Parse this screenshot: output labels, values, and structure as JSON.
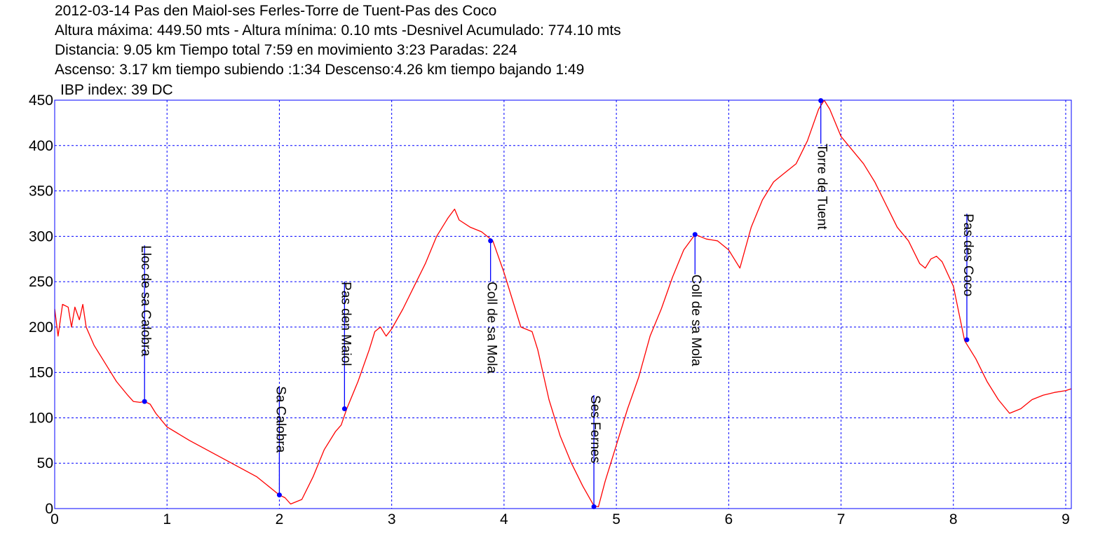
{
  "header": {
    "line1": "2012-03-14 Pas den Maiol-ses Ferles-Torre de Tuent-Pas des Coco",
    "line2": "Altura máxima: 449.50 mts - Altura mínima: 0.10 mts -Desnivel Acumulado: 774.10 mts",
    "line3": "Distancia: 9.05 km  Tiempo total 7:59  en movimiento 3:23 Paradas: 224",
    "line4": "Ascenso: 3.17 km  tiempo subiendo :1:34  Descenso:4.26 km tiempo bajando 1:49",
    "line5": "IBP index: 39 DC"
  },
  "colors": {
    "frame": "#0000ff",
    "grid": "#0000ff",
    "profile": "#ff0000",
    "waypoint": "#0000ff"
  },
  "chart_data": {
    "type": "line",
    "xlim": [
      0,
      9.05
    ],
    "ylim": [
      0,
      450
    ],
    "xticks": [
      0,
      1,
      2,
      3,
      4,
      5,
      6,
      7,
      8,
      9
    ],
    "yticks": [
      0,
      50,
      100,
      150,
      200,
      250,
      300,
      350,
      400,
      450
    ],
    "grid": true,
    "series": [
      {
        "points": [
          [
            0.0,
            220
          ],
          [
            0.03,
            190
          ],
          [
            0.07,
            225
          ],
          [
            0.12,
            222
          ],
          [
            0.15,
            200
          ],
          [
            0.18,
            222
          ],
          [
            0.22,
            208
          ],
          [
            0.25,
            225
          ],
          [
            0.28,
            200
          ],
          [
            0.35,
            180
          ],
          [
            0.45,
            160
          ],
          [
            0.55,
            140
          ],
          [
            0.65,
            125
          ],
          [
            0.7,
            118
          ],
          [
            0.76,
            117
          ],
          [
            0.8,
            118
          ],
          [
            0.85,
            115
          ],
          [
            0.9,
            105
          ],
          [
            1.0,
            90
          ],
          [
            1.2,
            75
          ],
          [
            1.5,
            55
          ],
          [
            1.8,
            35
          ],
          [
            2.0,
            15
          ],
          [
            2.05,
            12
          ],
          [
            2.1,
            5
          ],
          [
            2.2,
            10
          ],
          [
            2.3,
            35
          ],
          [
            2.4,
            65
          ],
          [
            2.5,
            85
          ],
          [
            2.55,
            92
          ],
          [
            2.6,
            110
          ],
          [
            2.7,
            140
          ],
          [
            2.8,
            175
          ],
          [
            2.85,
            195
          ],
          [
            2.9,
            200
          ],
          [
            2.95,
            190
          ],
          [
            3.0,
            198
          ],
          [
            3.1,
            220
          ],
          [
            3.2,
            245
          ],
          [
            3.3,
            270
          ],
          [
            3.4,
            300
          ],
          [
            3.5,
            320
          ],
          [
            3.56,
            330
          ],
          [
            3.6,
            318
          ],
          [
            3.7,
            310
          ],
          [
            3.8,
            305
          ],
          [
            3.9,
            295
          ],
          [
            4.0,
            260
          ],
          [
            4.1,
            220
          ],
          [
            4.15,
            200
          ],
          [
            4.25,
            195
          ],
          [
            4.3,
            175
          ],
          [
            4.4,
            120
          ],
          [
            4.5,
            80
          ],
          [
            4.6,
            50
          ],
          [
            4.7,
            25
          ],
          [
            4.8,
            3
          ],
          [
            4.84,
            2
          ],
          [
            4.9,
            30
          ],
          [
            5.0,
            70
          ],
          [
            5.1,
            110
          ],
          [
            5.2,
            145
          ],
          [
            5.3,
            190
          ],
          [
            5.4,
            220
          ],
          [
            5.5,
            255
          ],
          [
            5.6,
            285
          ],
          [
            5.7,
            302
          ],
          [
            5.8,
            297
          ],
          [
            5.9,
            295
          ],
          [
            6.0,
            285
          ],
          [
            6.1,
            265
          ],
          [
            6.2,
            310
          ],
          [
            6.3,
            340
          ],
          [
            6.4,
            360
          ],
          [
            6.5,
            370
          ],
          [
            6.6,
            380
          ],
          [
            6.7,
            405
          ],
          [
            6.8,
            440
          ],
          [
            6.85,
            450
          ],
          [
            6.9,
            440
          ],
          [
            7.0,
            410
          ],
          [
            7.1,
            395
          ],
          [
            7.2,
            380
          ],
          [
            7.3,
            360
          ],
          [
            7.4,
            335
          ],
          [
            7.5,
            310
          ],
          [
            7.6,
            295
          ],
          [
            7.7,
            270
          ],
          [
            7.75,
            265
          ],
          [
            7.8,
            275
          ],
          [
            7.85,
            278
          ],
          [
            7.9,
            272
          ],
          [
            8.0,
            245
          ],
          [
            8.1,
            185
          ],
          [
            8.2,
            165
          ],
          [
            8.3,
            140
          ],
          [
            8.4,
            120
          ],
          [
            8.5,
            105
          ],
          [
            8.6,
            110
          ],
          [
            8.7,
            120
          ],
          [
            8.8,
            125
          ],
          [
            8.9,
            128
          ],
          [
            9.0,
            130
          ],
          [
            9.05,
            132
          ]
        ]
      }
    ],
    "waypoints": [
      {
        "name": "Lloc de sa Calobra",
        "x": 0.8,
        "y": 118,
        "label_top_y": 290
      },
      {
        "name": "Sa Calobra",
        "x": 2.0,
        "y": 15,
        "label_top_y": 135
      },
      {
        "name": "Pas den Maiol",
        "x": 2.58,
        "y": 110,
        "label_top_y": 250
      },
      {
        "name": "Coll de sa Mola",
        "x": 3.88,
        "y": 295,
        "label_top_y": 250
      },
      {
        "name": "Ses Fernes",
        "x": 4.8,
        "y": 2,
        "label_top_y": 125
      },
      {
        "name": "Coll de sa Mola",
        "x": 5.7,
        "y": 302,
        "label_top_y": 258
      },
      {
        "name": "Torre de Tuent",
        "x": 6.82,
        "y": 449.5,
        "label_top_y": 402
      },
      {
        "name": "Pas des Coco",
        "x": 8.12,
        "y": 186,
        "label_top_y": 325
      }
    ]
  }
}
